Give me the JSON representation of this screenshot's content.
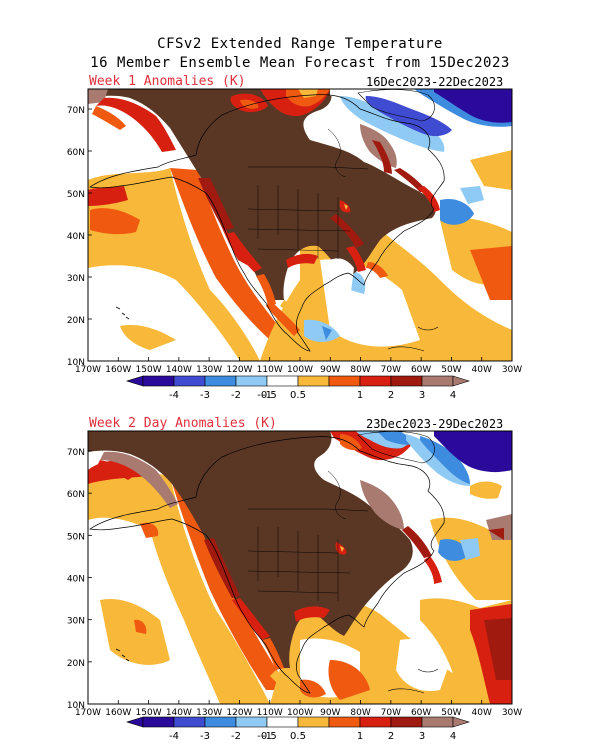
{
  "header": {
    "line1": "CFSv2 Extended Range Temperature",
    "line2": "16 Member Ensemble Mean Forecast from 15Dec2023"
  },
  "panels": [
    {
      "label": "Week 1 Anomalies (K)",
      "dates": "16Dec2023-22Dec2023"
    },
    {
      "label": "Week 2 Day Anomalies (K)",
      "dates": "23Dec2023-29Dec2023"
    }
  ],
  "axes": {
    "lat_labels": [
      "70N",
      "60N",
      "50N",
      "40N",
      "30N",
      "20N",
      "10N"
    ],
    "lon_labels": [
      "170W",
      "160W",
      "150W",
      "140W",
      "130W",
      "120W",
      "110W",
      "100W",
      "90W",
      "80W",
      "70W",
      "60W",
      "50W",
      "40W",
      "30W"
    ]
  },
  "colorbar": {
    "tick_labels": [
      "-4",
      "-3",
      "-2",
      "-1",
      "-0.5",
      "0.5",
      "1",
      "2",
      "3",
      "4"
    ],
    "colors": [
      "#2a0a9a",
      "#3f4bd0",
      "#3e8ce0",
      "#8fcaf4",
      "#ffffff",
      "#f8b93a",
      "#f05a10",
      "#d82010",
      "#a01a10",
      "#a87a70"
    ]
  },
  "colors": {
    "brown": "#5a3724",
    "taupe": "#a87a70",
    "darkred": "#a01a10",
    "red": "#d82010",
    "orange": "#f05a10",
    "yellow": "#f8b93a",
    "white": "#ffffff",
    "lightblue": "#8fcaf4",
    "blue": "#3e8ce0",
    "mblue": "#3f4bd0",
    "navy": "#2a0a9a"
  }
}
